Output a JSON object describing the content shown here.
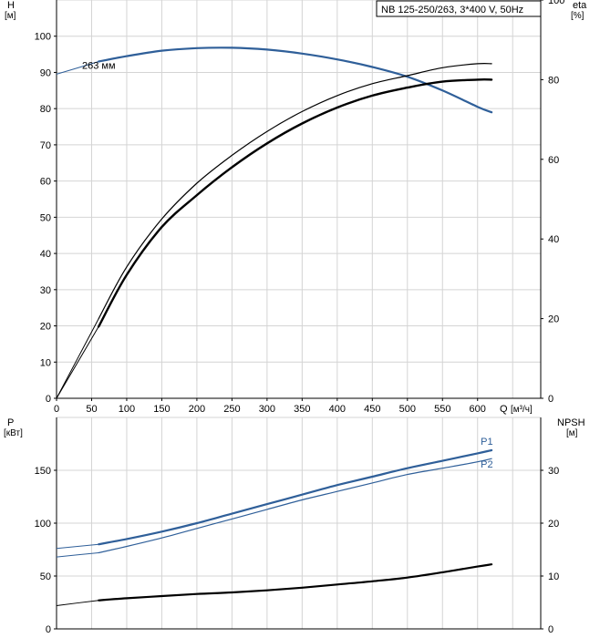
{
  "chart_data": [
    {
      "type": "line",
      "panel": "head-efficiency",
      "title": "NB 125-250/263, 3*400 V, 50Hz",
      "left_axis": {
        "label": "H",
        "unit": "[м]",
        "ylim": [
          0,
          110
        ],
        "ticks": [
          0,
          10,
          20,
          30,
          40,
          50,
          60,
          70,
          80,
          90,
          100
        ]
      },
      "right_axis": {
        "label": "eta",
        "unit": "[%]",
        "ylim": [
          0,
          100
        ],
        "ticks": [
          0,
          20,
          40,
          60,
          80,
          100
        ]
      },
      "x_axis": {
        "label": "Q",
        "unit": "[м³/ч]",
        "xlim": [
          0,
          690
        ],
        "ticks": [
          0,
          50,
          100,
          150,
          200,
          250,
          300,
          350,
          400,
          450,
          500,
          550,
          600
        ]
      },
      "grid": true,
      "series": [
        {
          "name": "263 мм",
          "axis": "left",
          "color": "#2f5f99",
          "width": 2.2,
          "x": [
            0,
            60,
            100,
            150,
            200,
            250,
            300,
            350,
            400,
            450,
            500,
            550,
            600,
            620
          ],
          "y": [
            89.5,
            93,
            94.5,
            96,
            96.7,
            96.8,
            96.3,
            95.2,
            93.6,
            91.5,
            88.8,
            85,
            80.5,
            79
          ],
          "start_x": 60,
          "stub_width": 1
        },
        {
          "name": "",
          "axis": "right",
          "color": "#000000",
          "width": 1.2,
          "x": [
            0,
            60,
            100,
            150,
            200,
            250,
            300,
            350,
            400,
            450,
            500,
            550,
            600,
            620
          ],
          "y": [
            0,
            20,
            33,
            45,
            54,
            61,
            67,
            72,
            76,
            79,
            81,
            83,
            84,
            84
          ],
          "start_x": 60,
          "stub_width": 1
        },
        {
          "name": "",
          "axis": "right",
          "color": "#000000",
          "width": 2.4,
          "x": [
            0,
            60,
            100,
            150,
            200,
            250,
            300,
            350,
            400,
            450,
            500,
            550,
            600,
            620
          ],
          "y": [
            0,
            18,
            31,
            43,
            51,
            58,
            64,
            69,
            73,
            76,
            78,
            79.5,
            80,
            80
          ],
          "start_x": 60,
          "stub_width": 1
        }
      ]
    },
    {
      "type": "line",
      "panel": "power-npsh",
      "left_axis": {
        "label": "P",
        "unit": "[кВт]",
        "ylim": [
          0,
          200
        ],
        "ticks": [
          0,
          50,
          100,
          150
        ]
      },
      "right_axis": {
        "label": "NPSH",
        "unit": "[м]",
        "ylim": [
          0,
          40
        ],
        "ticks": [
          0,
          10,
          20,
          30
        ]
      },
      "x_axis": {
        "xlim": [
          0,
          690
        ]
      },
      "grid": true,
      "series": [
        {
          "name": "P1",
          "axis": "left",
          "color": "#2f5f99",
          "width": 2.2,
          "x": [
            0,
            60,
            100,
            150,
            200,
            250,
            300,
            350,
            400,
            450,
            500,
            550,
            600,
            620
          ],
          "y": [
            76,
            80,
            85,
            92,
            100,
            109,
            118,
            127,
            136,
            144,
            152,
            159,
            166,
            169
          ],
          "start_x": 60,
          "stub_width": 1
        },
        {
          "name": "P2",
          "axis": "left",
          "color": "#2f5f99",
          "width": 1.2,
          "x": [
            0,
            60,
            100,
            150,
            200,
            250,
            300,
            350,
            400,
            450,
            500,
            550,
            600,
            620
          ],
          "y": [
            68,
            72,
            78,
            86,
            95,
            104,
            113,
            122,
            130,
            138,
            146,
            152,
            158,
            161
          ],
          "start_x": 60,
          "stub_width": 1
        },
        {
          "name": "",
          "axis": "right",
          "color": "#000000",
          "width": 2.2,
          "x": [
            0,
            60,
            100,
            150,
            200,
            250,
            300,
            350,
            400,
            450,
            500,
            550,
            600,
            620
          ],
          "y": [
            4.4,
            5.4,
            5.8,
            6.2,
            6.6,
            6.9,
            7.3,
            7.8,
            8.4,
            9,
            9.7,
            10.7,
            11.8,
            12.2
          ],
          "start_x": 60,
          "stub_width": 1
        }
      ]
    }
  ]
}
